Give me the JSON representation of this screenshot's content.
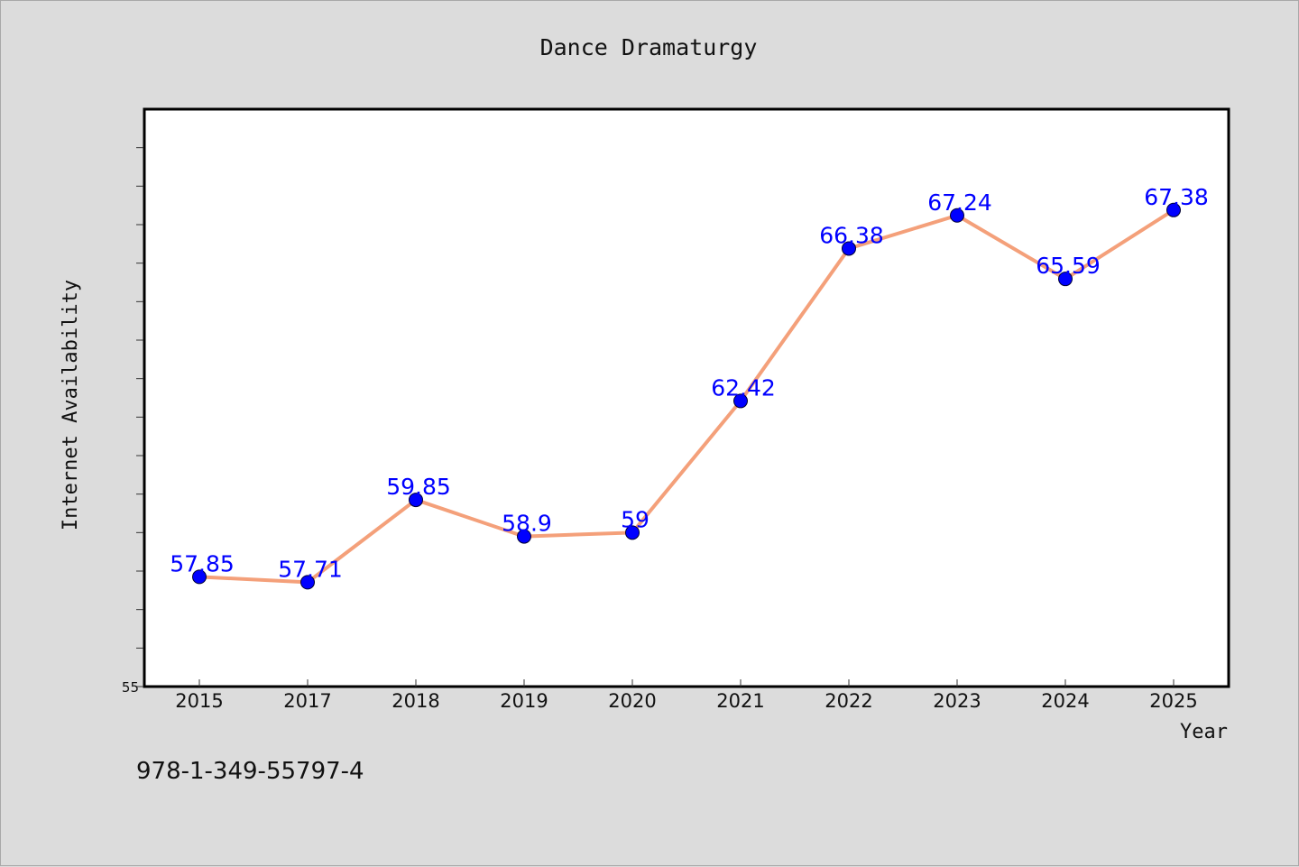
{
  "chart_data": {
    "type": "line",
    "title": "Dance Dramaturgy",
    "xlabel": "Year",
    "ylabel": "Internet Availability",
    "categories": [
      "2015",
      "2017",
      "2018",
      "2019",
      "2020",
      "2021",
      "2022",
      "2023",
      "2024",
      "2025"
    ],
    "series": [
      {
        "values": [
          57.85,
          57.71,
          59.85,
          58.9,
          59,
          62.42,
          66.38,
          67.24,
          65.59,
          67.38
        ],
        "data_labels": [
          "57.85",
          "57.71",
          "59.85",
          "58.9",
          "59",
          "62.42",
          "66.38",
          "67.24",
          "65.59",
          "67.38"
        ]
      }
    ],
    "ylim": [
      55,
      70
    ],
    "yticks_labeled": [
      "55"
    ],
    "grid": false,
    "legend": "none",
    "colors": {
      "line": "#f4a07a",
      "marker": "#0000ff",
      "label": "#0000ff",
      "plot_bg": "#ffffff",
      "page_bg": "#dcdcdc"
    }
  },
  "footer": {
    "text": "978-1-349-55797-4"
  }
}
